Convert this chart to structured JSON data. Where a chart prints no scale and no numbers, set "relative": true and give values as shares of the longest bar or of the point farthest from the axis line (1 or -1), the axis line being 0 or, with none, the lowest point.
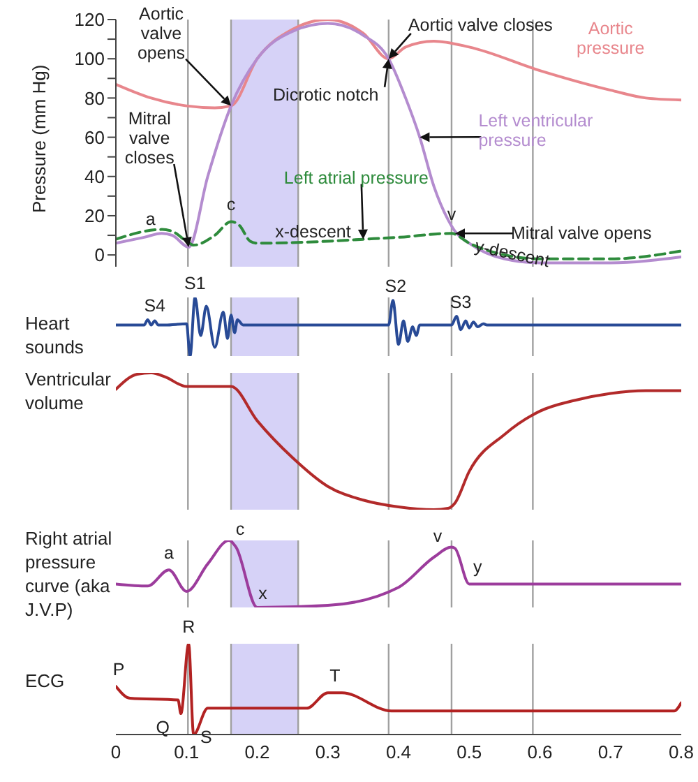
{
  "chart_data": [
    {
      "type": "line",
      "ylabel": "Pressure (mm Hg)",
      "xlim": [
        0,
        0.8
      ],
      "ylim": [
        -6,
        120
      ],
      "yticks": [
        0,
        {
          "value": 10,
          "label": null
        },
        20,
        {
          "value": 30,
          "label": null
        },
        40,
        {
          "value": 50,
          "label": null
        },
        60,
        {
          "value": 70,
          "label": null
        },
        80,
        {
          "value": 90,
          "label": null
        },
        100,
        {
          "value": 110,
          "label": null
        },
        120
      ],
      "tick_labels": "y",
      "series": [
        {
          "name": "Aortic pressure",
          "color": "#e8868c",
          "x": [
            0,
            0.05,
            0.1,
            0.14,
            0.163,
            0.2,
            0.25,
            0.3,
            0.35,
            0.386,
            0.41,
            0.45,
            0.5,
            0.6,
            0.7,
            0.75,
            0.8
          ],
          "values": [
            87,
            80,
            76,
            75,
            76,
            100,
            115,
            120,
            113,
            100,
            106,
            109,
            106,
            94,
            84,
            80,
            79
          ]
        },
        {
          "name": "Left ventricular pressure",
          "color": "#b48ccf",
          "x": [
            0,
            0.04,
            0.065,
            0.08,
            0.103,
            0.13,
            0.163,
            0.2,
            0.25,
            0.3,
            0.35,
            0.386,
            0.41,
            0.43,
            0.45,
            0.47,
            0.48,
            0.5,
            0.55,
            0.6,
            0.7,
            0.8
          ],
          "values": [
            6,
            9,
            11,
            10,
            4,
            40,
            76,
            100,
            114,
            118,
            112,
            100,
            80,
            60,
            35,
            18,
            12,
            6,
            -2,
            -4,
            -4,
            -1
          ]
        },
        {
          "name": "Left atrial pressure",
          "color": "#2e8b3c",
          "line_style": "dashed",
          "x": [
            0,
            0.065,
            0.08,
            0.1,
            0.11,
            0.14,
            0.163,
            0.175,
            0.19,
            0.2,
            0.3,
            0.35,
            0.4,
            0.475,
            0.5,
            0.55,
            0.6,
            0.7,
            0.8
          ],
          "values": [
            8,
            13,
            12,
            7,
            5,
            10,
            17,
            15,
            7,
            6,
            7,
            8,
            9,
            11,
            6,
            0,
            -2,
            -2,
            2
          ]
        }
      ],
      "ref_lines": [
        {
          "axis": "x",
          "value": 0.102,
          "color": "#a0a0a0"
        },
        {
          "axis": "x",
          "value": 0.163,
          "color": "#a0a0a0"
        },
        {
          "axis": "x",
          "value": 0.258,
          "color": "#a0a0a0"
        },
        {
          "axis": "x",
          "value": 0.386,
          "color": "#a0a0a0"
        },
        {
          "axis": "x",
          "value": 0.475,
          "color": "#a0a0a0"
        },
        {
          "axis": "x",
          "value": 0.59,
          "color": "#a0a0a0"
        }
      ],
      "bands": [
        {
          "axis": "x",
          "from": 0.163,
          "to": 0.258,
          "color": "#d6d2f7"
        }
      ],
      "annotations": [
        {
          "text": "Aortic valve opens",
          "x": 0.163,
          "y": 76
        },
        {
          "text": "Aortic valve closes",
          "x": 0.386,
          "y": 100
        },
        {
          "text": "Dicrotic notch",
          "x": 0.386,
          "y": 100
        },
        {
          "text": "Mitral valve closes",
          "x": 0.103,
          "y": 4
        },
        {
          "text": "a",
          "x": 0.065,
          "y": 11
        },
        {
          "text": "c",
          "x": 0.163,
          "y": 17
        },
        {
          "text": "x-descent",
          "x": 0.2,
          "y": 6
        },
        {
          "text": "v",
          "x": 0.475,
          "y": 12
        },
        {
          "text": "Mitral valve opens",
          "x": 0.48,
          "y": 11
        },
        {
          "text": "y-descent",
          "x": 0.5,
          "y": 5
        }
      ]
    },
    {
      "type": "line",
      "ylabel": "Heart sounds",
      "relative": true,
      "xlim": [
        0,
        0.8
      ],
      "tick_labels": false,
      "series": [
        {
          "color": "#284a96",
          "x": [
            0,
            0.04,
            0.045,
            0.05,
            0.055,
            0.06,
            0.07,
            0.1,
            0.105,
            0.112,
            0.12,
            0.128,
            0.14,
            0.152,
            0.158,
            0.163,
            0.168,
            0.172,
            0.18,
            0.386,
            0.392,
            0.4,
            0.407,
            0.413,
            0.42,
            0.425,
            0.43,
            0.475,
            0.482,
            0.488,
            0.495,
            0.5,
            0.506,
            0.512,
            0.52,
            0.525,
            0.8
          ],
          "values": [
            0.53,
            0.53,
            0.62,
            0.53,
            0.6,
            0.53,
            0.53,
            0.55,
            0,
            1,
            0.35,
            0.85,
            0.15,
            0.75,
            0.3,
            0.7,
            0.4,
            0.62,
            0.53,
            0.53,
            0.95,
            0.2,
            0.6,
            0.25,
            0.5,
            0.35,
            0.53,
            0.53,
            0.68,
            0.45,
            0.6,
            0.48,
            0.58,
            0.5,
            0.55,
            0.53,
            0.53
          ]
        }
      ],
      "ref_lines": [
        {
          "axis": "x",
          "value": 0.102,
          "color": "#a0a0a0"
        },
        {
          "axis": "x",
          "value": 0.163,
          "color": "#a0a0a0"
        },
        {
          "axis": "x",
          "value": 0.258,
          "color": "#a0a0a0"
        },
        {
          "axis": "x",
          "value": 0.386,
          "color": "#a0a0a0"
        },
        {
          "axis": "x",
          "value": 0.475,
          "color": "#a0a0a0"
        },
        {
          "axis": "x",
          "value": 0.59,
          "color": "#a0a0a0"
        }
      ],
      "bands": [
        {
          "axis": "x",
          "from": 0.163,
          "to": 0.258,
          "color": "#d6d2f7"
        }
      ],
      "annotations": [
        {
          "text": "S4",
          "x": 0.055,
          "y": 0.62
        },
        {
          "text": "S1",
          "x": 0.112,
          "y": 1
        },
        {
          "text": "S2",
          "x": 0.392,
          "y": 0.95
        },
        {
          "text": "S3",
          "x": 0.488,
          "y": 0.68
        }
      ]
    },
    {
      "type": "line",
      "ylabel": "Ventricular volume",
      "relative": true,
      "xlim": [
        0,
        0.8
      ],
      "tick_labels": false,
      "series": [
        {
          "color": "#b22a2a",
          "x": [
            0,
            0.03,
            0.05,
            0.07,
            0.1,
            0.163,
            0.2,
            0.25,
            0.3,
            0.35,
            0.4,
            0.45,
            0.47,
            0.48,
            0.5,
            0.55,
            0.6,
            0.65,
            0.7,
            0.75,
            0.8
          ],
          "values": [
            0.88,
            0.99,
            1,
            0.97,
            0.9,
            0.9,
            0.65,
            0.38,
            0.17,
            0.07,
            0.02,
            0,
            0.01,
            0.05,
            0.28,
            0.55,
            0.72,
            0.8,
            0.85,
            0.87,
            0.87
          ]
        }
      ],
      "ref_lines": [
        {
          "axis": "x",
          "value": 0.102,
          "color": "#a0a0a0"
        },
        {
          "axis": "x",
          "value": 0.163,
          "color": "#a0a0a0"
        },
        {
          "axis": "x",
          "value": 0.258,
          "color": "#a0a0a0"
        },
        {
          "axis": "x",
          "value": 0.386,
          "color": "#a0a0a0"
        },
        {
          "axis": "x",
          "value": 0.475,
          "color": "#a0a0a0"
        },
        {
          "axis": "x",
          "value": 0.59,
          "color": "#a0a0a0"
        }
      ],
      "bands": [
        {
          "axis": "x",
          "from": 0.163,
          "to": 0.258,
          "color": "#d6d2f7"
        }
      ]
    },
    {
      "type": "line",
      "ylabel": "Right atrial pressure curve (aka J.V.P)",
      "relative": true,
      "xlim": [
        0,
        0.8
      ],
      "tick_labels": false,
      "series": [
        {
          "color": "#9c3c9c",
          "x": [
            0,
            0.045,
            0.075,
            0.1,
            0.13,
            0.16,
            0.17,
            0.2,
            0.3,
            0.4,
            0.45,
            0.475,
            0.48,
            0.5,
            0.8
          ],
          "values": [
            0.35,
            0.32,
            0.56,
            0.24,
            0.65,
            1,
            0.9,
            0,
            0.03,
            0.3,
            0.75,
            0.9,
            0.88,
            0.35,
            0.35
          ]
        }
      ],
      "ref_lines": [
        {
          "axis": "x",
          "value": 0.102,
          "color": "#a0a0a0"
        },
        {
          "axis": "x",
          "value": 0.163,
          "color": "#a0a0a0"
        },
        {
          "axis": "x",
          "value": 0.258,
          "color": "#a0a0a0"
        },
        {
          "axis": "x",
          "value": 0.386,
          "color": "#a0a0a0"
        },
        {
          "axis": "x",
          "value": 0.475,
          "color": "#a0a0a0"
        },
        {
          "axis": "x",
          "value": 0.59,
          "color": "#a0a0a0"
        }
      ],
      "bands": [
        {
          "axis": "x",
          "from": 0.163,
          "to": 0.258,
          "color": "#d6d2f7"
        }
      ],
      "annotations": [
        {
          "text": "a",
          "x": 0.075,
          "y": 0.56
        },
        {
          "text": "c",
          "x": 0.16,
          "y": 1
        },
        {
          "text": "x",
          "x": 0.2,
          "y": 0
        },
        {
          "text": "v",
          "x": 0.475,
          "y": 0.9
        },
        {
          "text": "y",
          "x": 0.5,
          "y": 0.35
        }
      ]
    },
    {
      "type": "line",
      "ylabel": "ECG",
      "relative": true,
      "xlim": [
        0,
        0.8
      ],
      "xticks": [
        0,
        0.1,
        0.2,
        0.3,
        0.4,
        0.5,
        0.6,
        0.7,
        0.8
      ],
      "tick_labels": "x",
      "series": [
        {
          "color": "#b22222",
          "x": [
            0,
            0.02,
            0.088,
            0.092,
            0.103,
            0.11,
            0.13,
            0.27,
            0.3,
            0.32,
            0.39,
            0.79,
            0.8
          ],
          "values": [
            0.53,
            0.4,
            0.38,
            0.23,
            1,
            0,
            0.29,
            0.29,
            0.46,
            0.46,
            0.26,
            0.26,
            0.35
          ]
        }
      ],
      "ref_lines": [
        {
          "axis": "x",
          "value": 0.102,
          "color": "#a0a0a0"
        },
        {
          "axis": "x",
          "value": 0.163,
          "color": "#a0a0a0"
        },
        {
          "axis": "x",
          "value": 0.258,
          "color": "#a0a0a0"
        },
        {
          "axis": "x",
          "value": 0.386,
          "color": "#a0a0a0"
        },
        {
          "axis": "x",
          "value": 0.475,
          "color": "#a0a0a0"
        },
        {
          "axis": "x",
          "value": 0.59,
          "color": "#a0a0a0"
        }
      ],
      "bands": [
        {
          "axis": "x",
          "from": 0.163,
          "to": 0.258,
          "color": "#d6d2f7"
        }
      ],
      "annotations": [
        {
          "text": "P",
          "x": 0,
          "y": 0.53
        },
        {
          "text": "Q",
          "x": 0.09,
          "y": 0.23
        },
        {
          "text": "R",
          "x": 0.103,
          "y": 1
        },
        {
          "text": "S",
          "x": 0.11,
          "y": 0
        },
        {
          "text": "T",
          "x": 0.31,
          "y": 0.46
        }
      ]
    }
  ]
}
